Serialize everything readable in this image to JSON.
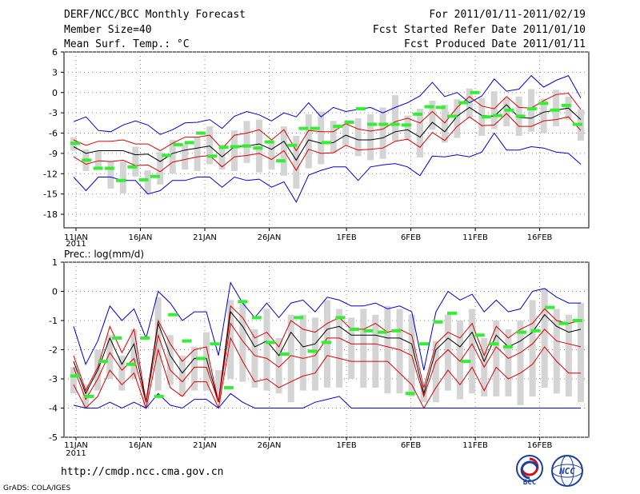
{
  "header": {
    "title": "DERF/NCC/BCC Monthly Forecast",
    "member_size": "Member Size=40",
    "variable": "Mean Surf. Temp.: °C",
    "period": "For 2011/01/11-2011/02/19",
    "fcst_started": "Fcst Started Refer Date 2011/01/10",
    "fcst_produced": "Fcst Produced Date 2011/01/11"
  },
  "footer": {
    "url": "http://cmdp.ncc.cma.gov.cn",
    "grads_credit": "GrADS: COLA/IGES",
    "logo_left_text": "BCC",
    "logo_right_text": "NCC"
  },
  "colors": {
    "envelope": "#0000dd",
    "spread": "#dd0000",
    "mean": "#000000",
    "box": "#d4d4d4",
    "observation": "#33ee33",
    "grid": "#888888"
  },
  "chart_data": [
    {
      "type": "line",
      "title": "Mean Surf. Temp.: °C",
      "ylabel": "°C",
      "ylim": [
        -20,
        6
      ],
      "yticks": [
        6,
        3,
        0,
        -3,
        -6,
        -9,
        -12,
        -15,
        -18
      ],
      "x_tick_labels": [
        "11JAN",
        "16JAN",
        "21JAN",
        "26JAN",
        "1FEB",
        "6FEB",
        "11FEB",
        "16FEB"
      ],
      "x_year_label": "2011",
      "days": 40,
      "series": [
        {
          "name": "max",
          "values": [
            -4.3,
            -3.6,
            -5.6,
            -5.8,
            -4.8,
            -4.2,
            -4.8,
            -6.2,
            -5.5,
            -4.5,
            -4.4,
            -4.0,
            -5.3,
            -3.5,
            -2.8,
            -3.3,
            -4.2,
            -3.0,
            -3.6,
            -1.5,
            -3.6,
            -2.2,
            -2.8,
            -2.5,
            -2.2,
            -3.0,
            -2.2,
            -1.5,
            -0.5,
            1.5,
            -0.6,
            0.0,
            -1.5,
            -0.5,
            2.0,
            0.2,
            0.5,
            2.5,
            0.8,
            1.8,
            2.5,
            -0.8
          ]
        },
        {
          "name": "upper",
          "values": [
            -7.0,
            -7.8,
            -7.2,
            -7.2,
            -7.0,
            -7.6,
            -7.6,
            -8.6,
            -7.5,
            -6.6,
            -6.6,
            -6.3,
            -8.3,
            -6.3,
            -6.0,
            -5.5,
            -7.0,
            -5.5,
            -8.6,
            -5.6,
            -5.8,
            -5.8,
            -4.6,
            -5.4,
            -5.7,
            -5.4,
            -4.3,
            -3.8,
            -4.5,
            -2.8,
            -4.5,
            -2.2,
            -0.6,
            -2.0,
            -2.4,
            -0.6,
            -2.2,
            -2.3,
            -1.2,
            -0.3,
            -0.1,
            -2.5
          ]
        },
        {
          "name": "mean",
          "values": [
            -8.0,
            -9.0,
            -8.6,
            -8.6,
            -8.6,
            -9.2,
            -9.1,
            -10.2,
            -9.0,
            -8.5,
            -8.2,
            -7.9,
            -9.5,
            -8.0,
            -7.9,
            -7.6,
            -8.4,
            -7.2,
            -10.0,
            -7.0,
            -7.5,
            -7.4,
            -6.3,
            -7.0,
            -7.0,
            -6.7,
            -5.8,
            -5.5,
            -6.6,
            -4.4,
            -5.8,
            -3.5,
            -2.2,
            -3.4,
            -3.5,
            -1.8,
            -3.7,
            -3.8,
            -2.9,
            -2.6,
            -2.3,
            -4.0
          ]
        },
        {
          "name": "lower",
          "values": [
            -9.5,
            -10.6,
            -10.1,
            -10.2,
            -10.0,
            -10.8,
            -10.7,
            -11.7,
            -10.3,
            -9.9,
            -9.5,
            -9.3,
            -11.0,
            -9.5,
            -9.3,
            -9.0,
            -9.9,
            -8.6,
            -11.5,
            -8.4,
            -9.0,
            -8.9,
            -7.8,
            -8.5,
            -8.4,
            -8.2,
            -7.2,
            -6.9,
            -8.1,
            -5.9,
            -7.1,
            -5.0,
            -3.6,
            -4.9,
            -4.8,
            -3.1,
            -5.0,
            -5.0,
            -4.2,
            -4.0,
            -3.6,
            -5.6
          ]
        },
        {
          "name": "min",
          "values": [
            -12.5,
            -14.5,
            -12.5,
            -12.5,
            -13.0,
            -13.0,
            -15.0,
            -14.5,
            -13.0,
            -13.0,
            -12.5,
            -12.5,
            -14.0,
            -12.5,
            -13.0,
            -12.8,
            -14.0,
            -13.2,
            -16.2,
            -12.2,
            -11.5,
            -11.0,
            -11.0,
            -13.0,
            -11.0,
            -10.7,
            -10.5,
            -11.0,
            -12.3,
            -9.4,
            -9.5,
            -9.2,
            -9.5,
            -8.8,
            -6.0,
            -8.5,
            -8.5,
            -8.0,
            -8.2,
            -8.8,
            -9.0,
            -10.6
          ]
        }
      ],
      "box_ranges": [
        [
          -8.6,
          -6.6
        ],
        [
          -11.6,
          -8.4
        ],
        [
          -11.2,
          -8.6
        ],
        [
          -14.2,
          -10.2
        ],
        [
          -14.9,
          -10.2
        ],
        [
          -12.4,
          -8.0
        ],
        [
          -15.0,
          -11.5
        ],
        [
          -13.6,
          -8.8
        ],
        [
          -12.0,
          -7.0
        ],
        [
          -11.4,
          -7.6
        ],
        [
          -11.6,
          -6.6
        ],
        [
          -10.6,
          -5.0
        ],
        [
          -11.4,
          -7.7
        ],
        [
          -11.6,
          -5.6
        ],
        [
          -10.4,
          -4.2
        ],
        [
          -11.8,
          -4.0
        ],
        [
          -11.4,
          -7.4
        ],
        [
          -12.3,
          -5.0
        ],
        [
          -14.2,
          -6.4
        ],
        [
          -11.2,
          -3.2
        ],
        [
          -10.6,
          -2.8
        ],
        [
          -9.0,
          -4.2
        ],
        [
          -7.8,
          -4.6
        ],
        [
          -9.4,
          -3.8
        ],
        [
          -10.0,
          -3.2
        ],
        [
          -9.8,
          -2.2
        ],
        [
          -7.2,
          -0.4
        ],
        [
          -7.0,
          -3.4
        ],
        [
          -9.6,
          -2.4
        ],
        [
          -5.5,
          -1.2
        ],
        [
          -7.4,
          -1.8
        ],
        [
          -6.7,
          -1.0
        ],
        [
          -3.8,
          0.6
        ],
        [
          -6.4,
          -0.8
        ],
        [
          -5.4,
          0.2
        ],
        [
          -5.0,
          -0.8
        ],
        [
          -6.4,
          -0.6
        ],
        [
          -5.8,
          0.5
        ],
        [
          -6.0,
          -0.9
        ],
        [
          -5.0,
          0.4
        ],
        [
          -4.0,
          -0.6
        ],
        [
          -7.1,
          -2.5
        ]
      ],
      "observations": [
        -7.5,
        -10.0,
        -11.2,
        -11.2,
        -13.0,
        -11.0,
        -12.9,
        -12.4,
        -9.3,
        -7.7,
        -7.4,
        -6.0,
        -9.4,
        -8.1,
        -8.0,
        -7.9,
        -8.2,
        -7.3,
        -10.1,
        -7.8,
        -5.3,
        -5.3,
        -7.4,
        -5.0,
        -4.4,
        -2.4,
        -4.7,
        -4.7,
        -4.7,
        -4.8,
        -3.2,
        -2.1,
        -2.2,
        -3.5,
        -1.5,
        0.0,
        -3.6,
        -3.4,
        -2.6,
        -3.5,
        -2.4,
        -1.6,
        -2.6,
        -1.9,
        -4.7
      ]
    },
    {
      "type": "line",
      "title": "Prec.: log(mm/d)",
      "ylabel": "log(mm/d)",
      "ylim": [
        -5,
        1
      ],
      "yticks": [
        1,
        0,
        -1,
        -2,
        -3,
        -4,
        -5
      ],
      "x_tick_labels": [
        "11JAN",
        "16JAN",
        "21JAN",
        "26JAN",
        "1FEB",
        "6FEB",
        "11FEB",
        "16FEB"
      ],
      "x_year_label": "2011",
      "days": 40,
      "series": [
        {
          "name": "max",
          "values": [
            -1.2,
            -2.5,
            -1.7,
            -0.5,
            -1.0,
            -0.6,
            -1.6,
            0.0,
            -0.4,
            -1.0,
            -0.7,
            -0.7,
            -2.2,
            0.3,
            -0.4,
            -0.9,
            -0.4,
            -0.9,
            -0.4,
            -0.3,
            -0.7,
            -0.2,
            -0.3,
            -0.5,
            -0.5,
            -0.4,
            -0.6,
            -0.5,
            -0.7,
            -2.7,
            -0.7,
            0.0,
            -0.3,
            -0.1,
            -0.7,
            -0.3,
            -0.7,
            -0.6,
            0.0,
            0.1,
            -0.2,
            -0.4,
            -0.4
          ]
        },
        {
          "name": "upper",
          "values": [
            -2.2,
            -3.4,
            -2.6,
            -1.2,
            -2.1,
            -1.3,
            -3.8,
            -1.0,
            -1.8,
            -2.4,
            -2.0,
            -1.9,
            -3.8,
            -0.5,
            -0.9,
            -1.6,
            -1.4,
            -1.9,
            -1.0,
            -1.3,
            -1.4,
            -1.1,
            -0.9,
            -1.3,
            -1.3,
            -1.1,
            -1.4,
            -1.3,
            -1.5,
            -3.3,
            -1.8,
            -1.4,
            -1.6,
            -1.1,
            -2.2,
            -1.2,
            -1.6,
            -1.3,
            -1.1,
            -0.6,
            -1.0,
            -1.1,
            -1.0
          ]
        },
        {
          "name": "mean",
          "values": [
            -2.4,
            -3.5,
            -2.7,
            -1.6,
            -2.5,
            -1.8,
            -3.8,
            -1.1,
            -2.2,
            -2.8,
            -2.3,
            -2.3,
            -3.8,
            -0.7,
            -1.2,
            -1.9,
            -1.7,
            -2.2,
            -1.4,
            -1.9,
            -1.8,
            -1.3,
            -1.2,
            -1.5,
            -1.5,
            -1.5,
            -1.6,
            -1.6,
            -1.8,
            -3.5,
            -2.0,
            -1.6,
            -1.9,
            -1.4,
            -2.4,
            -1.5,
            -1.9,
            -1.7,
            -1.4,
            -0.8,
            -1.2,
            -1.4,
            -1.3
          ]
        },
        {
          "name": "upper2",
          "values": [
            -2.6,
            -3.7,
            -3.0,
            -2.1,
            -2.7,
            -2.3,
            -3.8,
            -1.5,
            -2.7,
            -3.1,
            -2.6,
            -2.6,
            -3.8,
            -1.1,
            -1.7,
            -2.2,
            -2.3,
            -2.6,
            -2.2,
            -2.3,
            -2.2,
            -1.6,
            -1.6,
            -1.8,
            -1.8,
            -1.8,
            -1.9,
            -2.0,
            -2.2,
            -3.6,
            -2.4,
            -2.0,
            -2.4,
            -1.8,
            -2.6,
            -1.9,
            -2.3,
            -2.1,
            -1.8,
            -1.3,
            -1.7,
            -1.8,
            -1.9
          ]
        },
        {
          "name": "lower",
          "values": [
            -3.2,
            -4.0,
            -3.6,
            -2.7,
            -3.2,
            -2.8,
            -4.0,
            -2.0,
            -3.3,
            -3.6,
            -3.1,
            -3.1,
            -4.0,
            -1.6,
            -2.4,
            -3.1,
            -3.0,
            -3.3,
            -3.1,
            -2.9,
            -2.8,
            -2.2,
            -2.3,
            -2.4,
            -2.4,
            -2.4,
            -2.4,
            -2.8,
            -3.2,
            -4.0,
            -3.3,
            -2.7,
            -3.2,
            -2.6,
            -3.4,
            -2.6,
            -3.0,
            -2.8,
            -2.5,
            -1.9,
            -2.4,
            -2.8,
            -2.8
          ]
        },
        {
          "name": "min",
          "values": [
            -3.9,
            -4.0,
            -4.0,
            -3.8,
            -4.0,
            -3.8,
            -4.0,
            -3.5,
            -3.9,
            -4.0,
            -3.7,
            -3.7,
            -4.0,
            -3.5,
            -3.8,
            -4.0,
            -4.0,
            -4.0,
            -4.0,
            -4.0,
            -3.8,
            -3.7,
            -3.6,
            -4.0,
            -4.0,
            -4.0,
            -4.0,
            -4.0,
            -4.0,
            -4.0,
            -4.0,
            -4.0,
            -4.0,
            -4.0,
            -4.0,
            -4.0,
            -4.0,
            -4.0,
            -4.0,
            -4.0,
            -4.0,
            -4.0,
            -4.0
          ]
        }
      ],
      "box_ranges": [
        [
          -3.5,
          -2.6
        ],
        [
          -4.0,
          -3.2
        ],
        [
          -3.4,
          -2.0
        ],
        [
          -3.0,
          -1.5
        ],
        [
          -3.4,
          -2.2
        ],
        [
          -3.0,
          -1.3
        ],
        [
          -4.0,
          -3.5
        ],
        [
          -3.4,
          -0.2
        ],
        [
          -3.2,
          -1.5
        ],
        [
          -3.6,
          -2.2
        ],
        [
          -3.4,
          -1.9
        ],
        [
          -3.4,
          -1.4
        ],
        [
          -3.8,
          -2.7
        ],
        [
          -3.0,
          -0.3
        ],
        [
          -3.1,
          -0.3
        ],
        [
          -3.3,
          -1.3
        ],
        [
          -3.4,
          -0.6
        ],
        [
          -3.5,
          -1.6
        ],
        [
          -3.8,
          -0.8
        ],
        [
          -3.4,
          -0.8
        ],
        [
          -3.4,
          -0.9
        ],
        [
          -3.3,
          -0.3
        ],
        [
          -3.3,
          -0.6
        ],
        [
          -3.0,
          -0.9
        ],
        [
          -3.3,
          -0.6
        ],
        [
          -3.3,
          -0.8
        ],
        [
          -3.5,
          -0.5
        ],
        [
          -3.5,
          -0.6
        ],
        [
          -3.6,
          -0.8
        ],
        [
          -3.8,
          -3.2
        ],
        [
          -3.8,
          -1.7
        ],
        [
          -3.4,
          -0.8
        ],
        [
          -3.7,
          -1.0
        ],
        [
          -3.5,
          -0.6
        ],
        [
          -3.6,
          -1.6
        ],
        [
          -3.6,
          -1.0
        ],
        [
          -3.6,
          -1.3
        ],
        [
          -3.9,
          -1.0
        ],
        [
          -3.6,
          -0.3
        ],
        [
          -3.3,
          0.1
        ],
        [
          -3.5,
          -0.6
        ],
        [
          -3.6,
          -0.8
        ],
        [
          -3.8,
          -0.4
        ]
      ],
      "observations": [
        -2.9,
        -3.6,
        -2.4,
        -1.6,
        -2.5,
        -1.6,
        -3.6,
        -0.8,
        -1.7,
        -2.3,
        -1.8,
        -3.3,
        -0.35,
        -0.9,
        -1.75,
        -2.15,
        -0.9,
        -2.05,
        -1.75,
        -0.9,
        -1.3,
        -1.35,
        -1.4,
        -1.35,
        -3.5,
        -1.8,
        -1.05,
        -0.75,
        -2.4,
        -1.5,
        -1.8,
        -1.9,
        -1.4,
        -1.35,
        -0.55,
        -1.1,
        -1.0
      ]
    }
  ]
}
